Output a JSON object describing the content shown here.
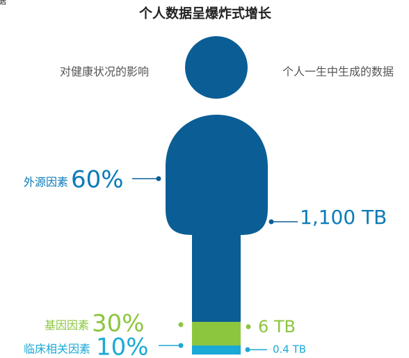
{
  "corner_fragment": "据",
  "title": "个人数据呈爆炸式增长",
  "left_heading": "对健康状况的影响",
  "right_heading": "个人一生中生成的数据",
  "factors": [
    {
      "name": "外源因素",
      "share": "60%",
      "data": "1,100 TB"
    },
    {
      "name": "基因因素",
      "share": "30%",
      "data": "6 TB"
    },
    {
      "name": "临床相关因素",
      "share": "10%",
      "data": "0.4 TB"
    }
  ]
}
